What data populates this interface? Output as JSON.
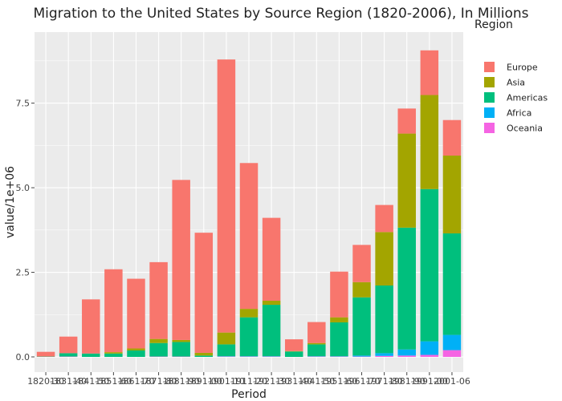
{
  "chart_data": {
    "type": "bar",
    "stacked": true,
    "title": "Migration to the United States by Source Region (1820-2006), In Millions",
    "xlabel": "Period",
    "ylabel": "value/1e+06",
    "ylim": [
      -0.45,
      9.6
    ],
    "yticks": [
      0,
      2.5,
      5,
      7.5
    ],
    "ytick_labels": [
      "0.0",
      "2.5",
      "5.0",
      "7.5"
    ],
    "grid": true,
    "legend": {
      "title": "Region",
      "placement": "top-right"
    },
    "categories": [
      "1820-30",
      "1831-40",
      "1841-50",
      "1851-60",
      "1861-70",
      "1871-80",
      "1881-90",
      "1891-00",
      "1901-10",
      "1911-20",
      "1921-30",
      "1931-40",
      "1941-50",
      "1951-60",
      "1961-70",
      "1971-80",
      "1981-90",
      "1991-00",
      "2001-06"
    ],
    "series": [
      {
        "name": "Oceania",
        "color": "#f564e3",
        "values": [
          0.0,
          0.01,
          0.0,
          0.0,
          0.0,
          0.01,
          0.01,
          0.0,
          0.01,
          0.01,
          0.01,
          0.0,
          0.01,
          0.01,
          0.01,
          0.03,
          0.04,
          0.06,
          0.2
        ]
      },
      {
        "name": "Africa",
        "color": "#00b0f6",
        "values": [
          0.0,
          0.0,
          0.0,
          0.0,
          0.0,
          0.0,
          0.0,
          0.0,
          0.01,
          0.01,
          0.01,
          0.0,
          0.01,
          0.01,
          0.03,
          0.08,
          0.18,
          0.4,
          0.45
        ]
      },
      {
        "name": "Americas",
        "color": "#00bf7d",
        "values": [
          0.01,
          0.1,
          0.1,
          0.1,
          0.19,
          0.4,
          0.43,
          0.04,
          0.35,
          1.15,
          1.52,
          0.16,
          0.35,
          1.0,
          1.72,
          2.0,
          3.6,
          4.5,
          3.0
        ]
      },
      {
        "name": "Asia",
        "color": "#a3a500",
        "values": [
          0.0,
          0.0,
          0.0,
          0.04,
          0.06,
          0.12,
          0.06,
          0.08,
          0.35,
          0.25,
          0.12,
          0.01,
          0.04,
          0.15,
          0.45,
          1.58,
          2.78,
          2.78,
          2.3
        ]
      },
      {
        "name": "Europe",
        "color": "#f8766d",
        "values": [
          0.14,
          0.49,
          1.6,
          2.45,
          2.06,
          2.27,
          4.73,
          3.55,
          8.07,
          4.31,
          2.45,
          0.35,
          0.62,
          1.35,
          1.1,
          0.8,
          0.74,
          1.32,
          1.05
        ]
      }
    ],
    "legend_order": [
      "Europe",
      "Asia",
      "Americas",
      "Africa",
      "Oceania"
    ]
  }
}
